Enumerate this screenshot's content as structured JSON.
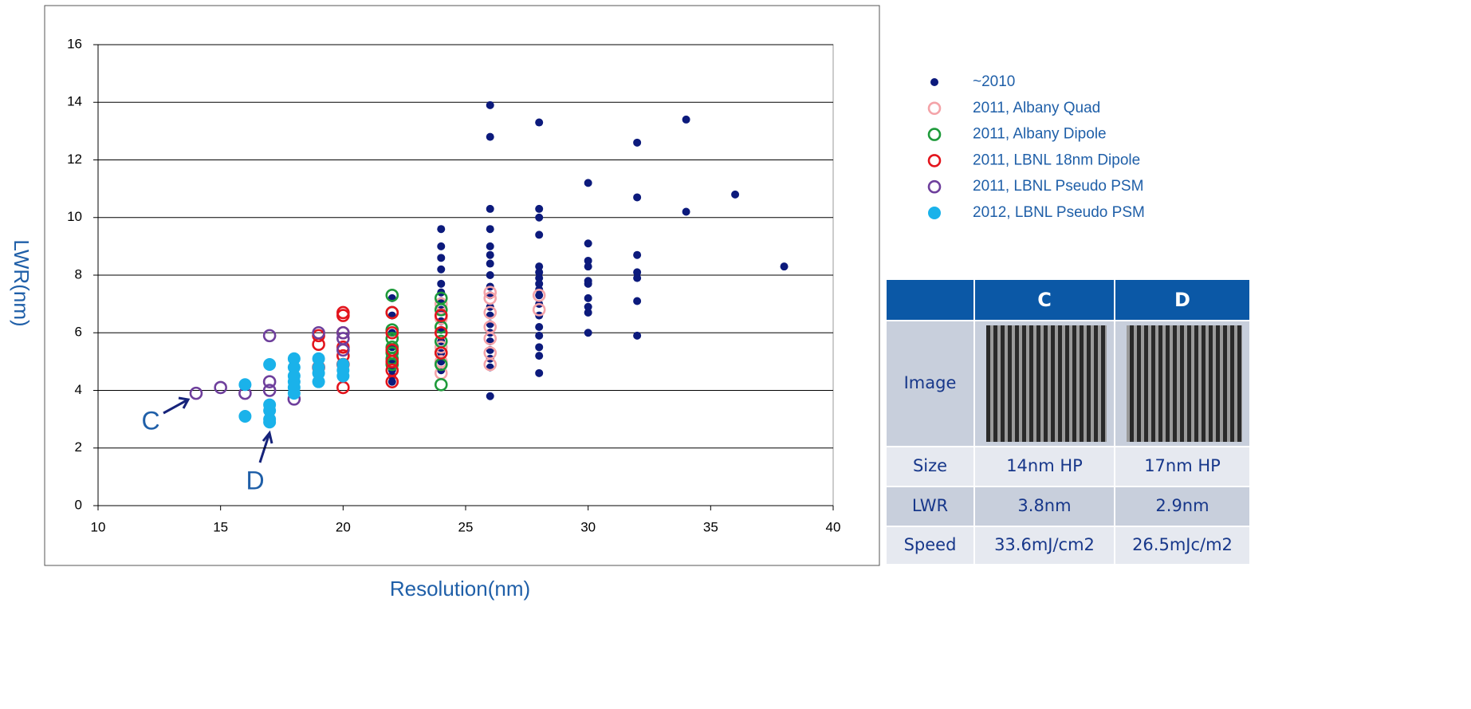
{
  "chart_data": {
    "type": "scatter",
    "xlabel": "Resolution(nm)",
    "ylabel": "LWR(nm)",
    "xlim": [
      10,
      40
    ],
    "xticks": [
      10,
      15,
      20,
      25,
      30,
      35,
      40
    ],
    "ylim": [
      0,
      16
    ],
    "yticks": [
      0,
      2,
      4,
      6,
      8,
      10,
      12,
      14,
      16
    ],
    "grid": true,
    "legend": "right",
    "series": [
      {
        "name": "~2010",
        "color": "#0c1a7c",
        "filled": true,
        "x": [
          22,
          22,
          22,
          22,
          22,
          22,
          22,
          22,
          24,
          24,
          24,
          24,
          24,
          24,
          24,
          24,
          24,
          24,
          24,
          24,
          24,
          24,
          26,
          26,
          26,
          26,
          26,
          26,
          26,
          26,
          26,
          26,
          26,
          26,
          26,
          26,
          26,
          26,
          26,
          26,
          26,
          28,
          28,
          28,
          28,
          28,
          28,
          28,
          28,
          28,
          28,
          28,
          28,
          28,
          28,
          28,
          28,
          28,
          30,
          30,
          30,
          30,
          30,
          30,
          30,
          30,
          30,
          30,
          32,
          32,
          32,
          32,
          32,
          32,
          32,
          34,
          34,
          36,
          38
        ],
        "values": [
          4.3,
          4.5,
          4.7,
          5.0,
          5.5,
          6.0,
          6.6,
          7.2,
          9.6,
          9.0,
          8.6,
          8.2,
          7.7,
          7.4,
          7.1,
          6.8,
          6.4,
          6.1,
          5.7,
          5.3,
          5.0,
          4.7,
          13.9,
          12.8,
          10.3,
          9.6,
          9.0,
          8.7,
          8.4,
          8.0,
          7.6,
          7.3,
          6.9,
          6.6,
          6.3,
          6.0,
          5.7,
          5.4,
          5.1,
          4.8,
          3.8,
          13.3,
          10.3,
          10.0,
          9.4,
          8.3,
          8.1,
          7.9,
          7.7,
          7.5,
          7.3,
          7.0,
          6.6,
          6.2,
          5.9,
          5.5,
          5.2,
          4.6,
          11.2,
          9.1,
          8.5,
          8.3,
          7.8,
          7.7,
          7.2,
          6.9,
          6.7,
          6.0,
          12.6,
          10.7,
          8.7,
          8.1,
          7.9,
          7.1,
          5.9,
          13.4,
          10.2,
          10.8,
          8.3
        ]
      },
      {
        "name": "2011, Albany Quad",
        "color": "#f4a3a8",
        "filled": false,
        "x": [
          24,
          24,
          24,
          24,
          24,
          24,
          26,
          26,
          26,
          26,
          26,
          26,
          26,
          28,
          28
        ],
        "values": [
          4.6,
          5.0,
          5.5,
          6.0,
          6.5,
          7.0,
          4.9,
          5.3,
          5.8,
          6.2,
          6.7,
          7.2,
          7.4,
          6.8,
          7.3
        ]
      },
      {
        "name": "2011, Albany Dipole",
        "color": "#1e9a3a",
        "filled": false,
        "x": [
          22,
          22,
          22,
          22,
          22,
          22,
          22,
          22,
          24,
          24,
          24,
          24,
          24,
          24,
          24
        ],
        "values": [
          7.3,
          6.7,
          6.1,
          5.8,
          5.5,
          5.3,
          5.1,
          4.9,
          7.2,
          6.8,
          6.2,
          5.7,
          5.3,
          4.9,
          4.2
        ]
      },
      {
        "name": "2011, LBNL 18nm Dipole",
        "color": "#e3141c",
        "filled": false,
        "x": [
          19,
          19,
          19,
          20,
          20,
          20,
          20,
          20,
          20,
          20,
          22,
          22,
          22,
          22,
          22,
          22,
          24,
          24,
          24
        ],
        "values": [
          5.6,
          5.9,
          4.8,
          6.7,
          6.6,
          6.0,
          5.5,
          5.2,
          4.9,
          4.1,
          6.7,
          6.0,
          5.4,
          5.0,
          4.7,
          4.3,
          6.6,
          6.0,
          5.3
        ]
      },
      {
        "name": "2011, LBNL Pseudo PSM",
        "color": "#6e3f9c",
        "filled": false,
        "x": [
          14,
          15,
          16,
          17,
          17,
          17,
          18,
          19,
          20,
          20,
          20
        ],
        "values": [
          3.9,
          4.1,
          3.9,
          5.9,
          4.3,
          4.0,
          3.7,
          6.0,
          6.0,
          5.8,
          5.4
        ]
      },
      {
        "name": "2012, LBNL Pseudo PSM",
        "color": "#1ab2ea",
        "filled": true,
        "large": true,
        "x": [
          16,
          16,
          17,
          17,
          17,
          17,
          17,
          18,
          18,
          18,
          18,
          18,
          18,
          19,
          19,
          19,
          19,
          20,
          20,
          20
        ],
        "values": [
          4.2,
          3.1,
          4.9,
          3.5,
          3.3,
          3.0,
          2.9,
          5.1,
          4.8,
          4.5,
          4.3,
          4.1,
          3.9,
          5.1,
          4.8,
          4.6,
          4.3,
          4.9,
          4.7,
          4.5
        ]
      }
    ],
    "annotations": [
      "C",
      "D"
    ]
  },
  "table": {
    "columns": [
      "C",
      "D"
    ],
    "rows": [
      {
        "label": "Image"
      },
      {
        "label": "Size",
        "cells": [
          "14nm HP",
          "17nm HP"
        ]
      },
      {
        "label": "LWR",
        "cells": [
          "3.8nm",
          "2.9nm"
        ]
      },
      {
        "label": "Speed",
        "cells": [
          "33.6mJ/cm2",
          "26.5mJc/m2"
        ]
      }
    ]
  }
}
